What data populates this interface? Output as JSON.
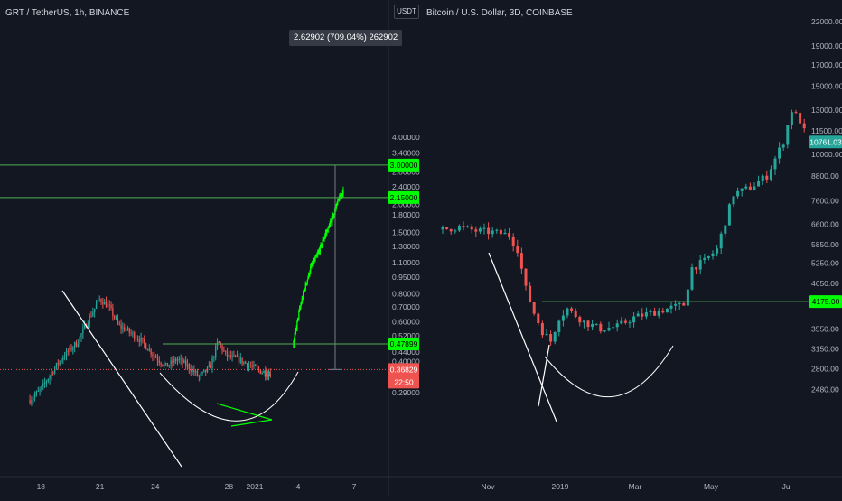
{
  "colors": {
    "background": "#131722",
    "up": "#26a69a",
    "down": "#ef5350",
    "bright_green": "#00ff00",
    "level_line": "#4caf50",
    "trend_line": "#ffffff",
    "axis_text": "#b2b5be",
    "separator": "#2a2e39"
  },
  "left_panel": {
    "title": "GRT / TetherUS, 1h, BINANCE",
    "currency_button": "USDT",
    "measure_tooltip": "2.62902 (709.04%) 262902",
    "countdown": "22:50"
  },
  "right_panel": {
    "title": "Bitcoin / U.S. Dollar, 3D, COINBASE"
  },
  "chart_data": [
    {
      "type": "candlestick",
      "title": "GRT / TetherUS, 1h, BINANCE",
      "y_scale": "log",
      "y_ticks": [
        "4.00000",
        "3.40000",
        "2.80000",
        "2.40000",
        "2.00000",
        "1.80000",
        "1.50000",
        "1.30000",
        "1.10000",
        "0.95000",
        "0.80000",
        "0.70000",
        "0.60000",
        "0.52000",
        "0.44000",
        "0.40000",
        "0.29000"
      ],
      "x_ticks": [
        "18",
        "21",
        "24",
        "28",
        "2021",
        "4",
        "7"
      ],
      "price_tags": [
        {
          "value": "3.00000",
          "style": "green"
        },
        {
          "value": "2.15000",
          "style": "green"
        },
        {
          "value": "0.47899",
          "style": "green"
        },
        {
          "value": "0.36829",
          "style": "red"
        }
      ],
      "levels": [
        3.0,
        2.15,
        0.47899,
        0.36829
      ],
      "series": [
        {
          "path": [
            [
              17.2,
              0.27
            ],
            [
              17.8,
              0.3
            ],
            [
              18.4,
              0.36
            ],
            [
              19.0,
              0.42
            ],
            [
              19.8,
              0.49
            ],
            [
              20.4,
              0.62
            ],
            [
              21.0,
              0.76
            ],
            [
              21.5,
              0.7
            ],
            [
              22.0,
              0.58
            ],
            [
              22.6,
              0.54
            ],
            [
              23.2,
              0.5
            ],
            [
              24.0,
              0.42
            ],
            [
              24.6,
              0.38
            ],
            [
              25.2,
              0.41
            ],
            [
              25.8,
              0.38
            ],
            [
              26.4,
              0.34
            ],
            [
              27.0,
              0.38
            ],
            [
              27.4,
              0.49
            ],
            [
              27.9,
              0.42
            ],
            [
              28.5,
              0.41
            ],
            [
              29.2,
              0.38
            ],
            [
              29.8,
              0.36
            ],
            [
              30.5,
              0.35
            ],
            [
              31.2,
              0.355
            ],
            [
              31.8,
              0.36
            ],
            [
              32.5,
              0.37
            ]
          ]
        },
        {
          "name": "breakout",
          "path": [
            [
              32.7,
              0.48
            ],
            [
              33.0,
              0.65
            ],
            [
              33.3,
              0.82
            ],
            [
              33.7,
              1.05
            ],
            [
              34.1,
              1.2
            ],
            [
              34.5,
              1.45
            ],
            [
              34.9,
              1.7
            ],
            [
              35.3,
              2.1
            ],
            [
              35.7,
              2.4
            ],
            [
              36.1,
              2.7
            ],
            [
              36.4,
              3.0
            ]
          ]
        }
      ]
    },
    {
      "type": "candlestick",
      "title": "Bitcoin / U.S. Dollar, 3D, COINBASE",
      "y_scale": "log",
      "y_ticks": [
        "22000.00",
        "19000.00",
        "17000.00",
        "15000.00",
        "13000.00",
        "11500.00",
        "10000.00",
        "8800.00",
        "7600.00",
        "6600.00",
        "5850.00",
        "5250.00",
        "4650.00",
        "4175.00",
        "3550.00",
        "3150.00",
        "2800.00",
        "2480.00"
      ],
      "x_ticks": [
        "Nov",
        "2019",
        "Mar",
        "May",
        "Jul"
      ],
      "price_tags": [
        {
          "value": "10761.03",
          "style": "teal"
        },
        {
          "value": "4175.00",
          "style": "green"
        }
      ],
      "levels": [
        4175
      ],
      "series": [
        {
          "path": [
            [
              0,
              6400
            ],
            [
              4,
              6500
            ],
            [
              8,
              6350
            ],
            [
              12,
              6300
            ],
            [
              16,
              6200
            ],
            [
              18,
              5700
            ],
            [
              20,
              4500
            ],
            [
              22,
              3900
            ],
            [
              24,
              3500
            ],
            [
              26,
              3300
            ],
            [
              28,
              3800
            ],
            [
              30,
              4000
            ],
            [
              34,
              3700
            ],
            [
              38,
              3550
            ],
            [
              42,
              3600
            ],
            [
              46,
              3800
            ],
            [
              50,
              3900
            ],
            [
              54,
              4000
            ],
            [
              58,
              4100
            ],
            [
              60,
              5100
            ],
            [
              63,
              5300
            ],
            [
              66,
              5700
            ],
            [
              70,
              7900
            ],
            [
              74,
              8200
            ],
            [
              78,
              8800
            ],
            [
              82,
              10800
            ],
            [
              84,
              13000
            ],
            [
              86,
              12200
            ],
            [
              88,
              10761
            ]
          ]
        }
      ]
    }
  ]
}
